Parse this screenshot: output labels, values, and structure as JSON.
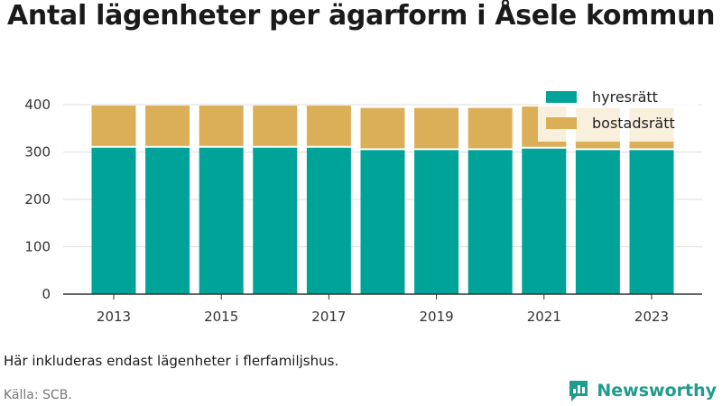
{
  "header": {
    "title": "Antal lägenheter per ägarform i Åsele kommun"
  },
  "footer": {
    "note": "Här inkluderas endast lägenheter i flerfamiljshus.",
    "source": "Källa: SCB.",
    "brand": "Newsworthy"
  },
  "colors": {
    "hyresratt": "#00a398",
    "bostadsratt": "#dbae58",
    "brand": "#1f9c8c"
  },
  "chart_data": {
    "type": "bar",
    "stacked": true,
    "categories": [
      "2013",
      "2014",
      "2015",
      "2016",
      "2017",
      "2018",
      "2019",
      "2020",
      "2021",
      "2022",
      "2023"
    ],
    "x_tick_labels": [
      "2013",
      "2015",
      "2017",
      "2019",
      "2021",
      "2023"
    ],
    "series": [
      {
        "name": "hyresrätt",
        "values": [
          311,
          311,
          311,
          311,
          311,
          306,
          306,
          306,
          309,
          306,
          306
        ]
      },
      {
        "name": "bostadsrätt",
        "values": [
          87,
          87,
          87,
          87,
          87,
          87,
          87,
          87,
          87,
          87,
          87
        ]
      }
    ],
    "ylim": [
      0,
      420
    ],
    "yticks": [
      0,
      100,
      200,
      300,
      400
    ],
    "grid": true,
    "legend_position": "top-right"
  }
}
